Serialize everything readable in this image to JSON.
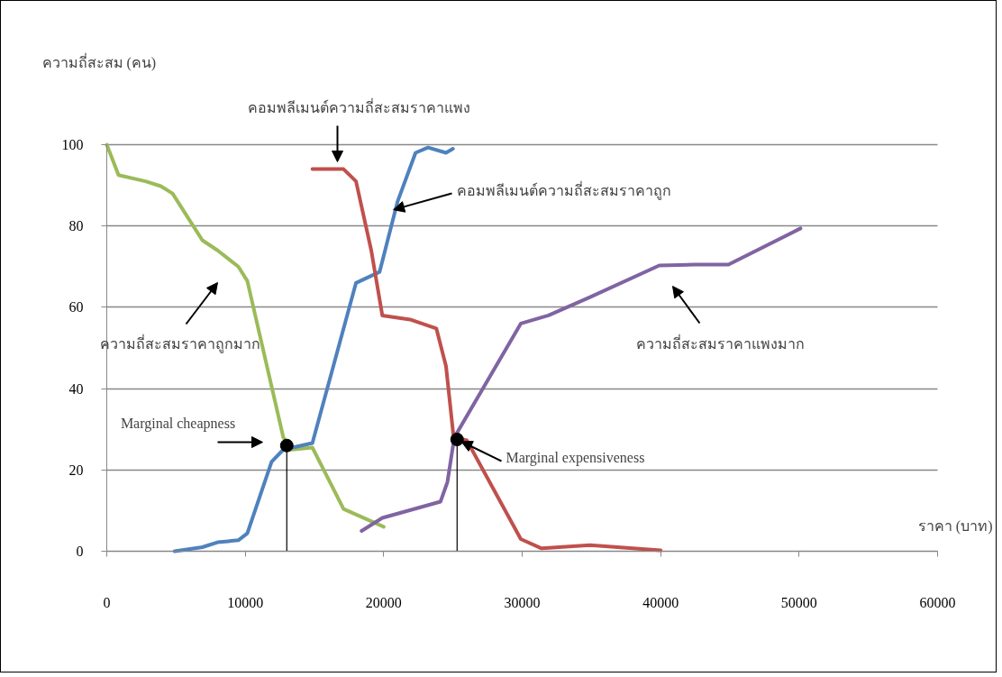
{
  "chart_data": {
    "type": "line",
    "xlabel": "ราคา (บาท)",
    "ylabel": "ความถี่สะสม (คน)",
    "xlim": [
      0,
      60000
    ],
    "xticks": [
      0,
      10000,
      20000,
      30000,
      40000,
      50000,
      60000
    ],
    "ylim": [
      0,
      100
    ],
    "yticks": [
      0,
      20,
      40,
      60,
      80,
      100
    ],
    "grid": "y",
    "line_style": "solid",
    "series": [
      {
        "color": "#9bbb59",
        "x": [
          0,
          850,
          2800,
          3900,
          4750,
          6900,
          8000,
          9500,
          10150,
          12750,
          13350,
          14850,
          17100,
          20000
        ],
        "values": [
          100,
          92.5,
          91,
          89.8,
          88,
          76.5,
          74,
          70,
          66.5,
          28,
          25,
          25.5,
          10.4,
          6
        ]
      },
      {
        "color": "#4f81bd",
        "x": [
          4900,
          6900,
          8000,
          9500,
          10150,
          11900,
          12750,
          14850,
          18000,
          19700,
          21000,
          22300,
          23200,
          24500,
          25000
        ],
        "values": [
          0,
          1,
          2.2,
          2.7,
          4.4,
          22,
          25,
          26.6,
          66,
          68.7,
          86,
          98,
          99.3,
          98,
          99
        ]
      },
      {
        "color": "#c0504d",
        "x": [
          14850,
          17100,
          18000,
          19100,
          19900,
          21900,
          23800,
          24500,
          25050,
          26000,
          29900,
          31400,
          34900,
          40000
        ],
        "values": [
          94,
          94,
          91,
          74,
          58,
          57,
          54.8,
          45.5,
          28,
          27.3,
          3,
          0.7,
          1.5,
          0.2
        ]
      },
      {
        "color": "#8064a2",
        "x": [
          18400,
          19900,
          24100,
          24600,
          25100,
          29900,
          31900,
          34900,
          39900,
          42500,
          44900,
          50100
        ],
        "values": [
          5,
          8.2,
          12.2,
          17,
          28,
          56,
          58,
          62.5,
          70.3,
          70.5,
          70.5,
          79.4
        ]
      },
      {
        "type": "scatter",
        "color": "#000000",
        "x": [
          13000,
          25300
        ],
        "values": [
          26,
          27.5
        ]
      },
      {
        "color": "#000000",
        "x": [
          13000,
          13000
        ],
        "values": [
          0,
          26
        ]
      },
      {
        "color": "#000000",
        "x": [
          25300,
          25300
        ],
        "values": [
          0,
          27.5
        ]
      }
    ],
    "annotations": [
      "คอมพลีเมนต์ความถี่สะสมราคาแพง",
      {
        "text": "คอมพลีเมนต์ความถี่สะสมราคาถูก",
        "x": 20700,
        "y": 84
      },
      "ความถี่สะสมราคาถูกมาก",
      "ความถี่สะสมราคาแพงมาก",
      "Marginal cheapness",
      {
        "text": "Marginal expensiveness",
        "x": 25600,
        "y": 27
      }
    ]
  }
}
